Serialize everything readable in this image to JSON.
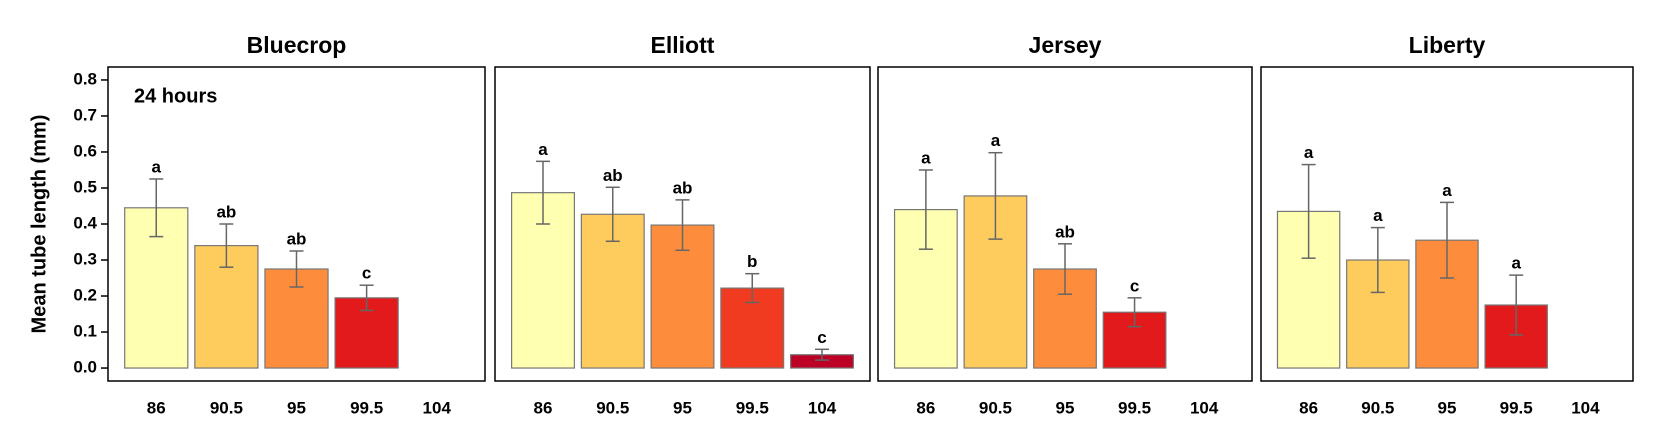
{
  "chart_data": [
    {
      "type": "bar",
      "title": "Bluecrop",
      "ylabel": "Mean tube length (mm)",
      "annotation": "24 hours",
      "categories": [
        "86",
        "90.5",
        "95",
        "99.5",
        "104"
      ],
      "values": [
        0.445,
        0.34,
        0.275,
        0.195,
        0
      ],
      "errors": [
        0.08,
        0.06,
        0.05,
        0.035,
        0
      ],
      "letters": [
        "a",
        "ab",
        "ab",
        "c",
        null
      ],
      "colors": [
        "#ffffb2",
        "#fecc5c",
        "#fd8d3c",
        "#e31a1c",
        "#bd0026"
      ],
      "ylim": [
        -0.036,
        0.836
      ],
      "yticks": [
        {
          "value": 0,
          "label": "0.0"
        },
        0.1,
        0.2,
        0.3,
        0.4,
        0.5,
        0.6,
        0.7,
        0.8
      ]
    },
    {
      "type": "bar",
      "title": "Elliott",
      "categories": [
        "86",
        "90.5",
        "95",
        "99.5",
        "104"
      ],
      "values": [
        0.487,
        0.427,
        0.397,
        0.222,
        0.037
      ],
      "errors": [
        0.087,
        0.075,
        0.07,
        0.04,
        0.015
      ],
      "letters": [
        "a",
        "ab",
        "ab",
        "b",
        "c"
      ],
      "colors": [
        "#ffffb2",
        "#fecc5c",
        "#fd8d3c",
        "#f03b20",
        "#bd0026"
      ],
      "ylim": [
        -0.036,
        0.836
      ]
    },
    {
      "type": "bar",
      "title": "Jersey",
      "categories": [
        "86",
        "90.5",
        "95",
        "99.5",
        "104"
      ],
      "values": [
        0.44,
        0.478,
        0.275,
        0.155,
        0
      ],
      "errors": [
        0.11,
        0.12,
        0.07,
        0.04,
        0
      ],
      "letters": [
        "a",
        "a",
        "ab",
        "c",
        null
      ],
      "colors": [
        "#ffffb2",
        "#fecc5c",
        "#fd8d3c",
        "#e31a1c",
        "#bd0026"
      ],
      "ylim": [
        -0.036,
        0.836
      ]
    },
    {
      "type": "bar",
      "title": "Liberty",
      "categories": [
        "86",
        "90.5",
        "95",
        "99.5",
        "104"
      ],
      "values": [
        0.435,
        0.3,
        0.355,
        0.175,
        0
      ],
      "errors": [
        0.13,
        0.09,
        0.105,
        0.083,
        0
      ],
      "letters": [
        "a",
        "a",
        "a",
        "a",
        null
      ],
      "colors": [
        "#ffffb2",
        "#fecc5c",
        "#fd8d3c",
        "#e31a1c",
        "#bd0026"
      ],
      "ylim": [
        -0.036,
        0.836
      ]
    }
  ]
}
